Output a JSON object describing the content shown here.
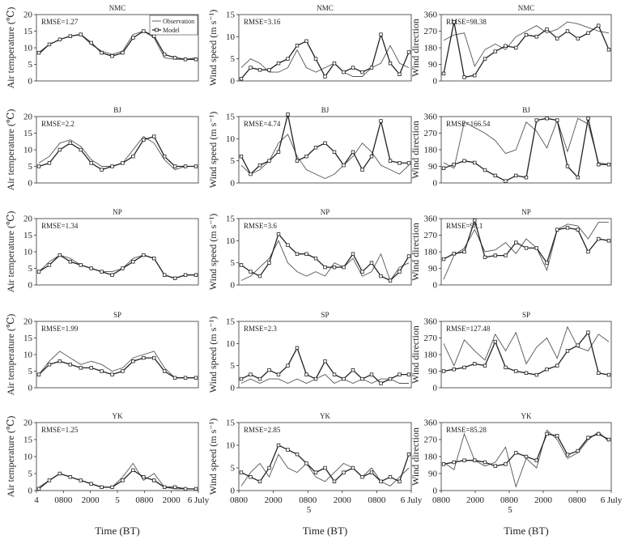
{
  "figure": {
    "xlabel": "Time (BT)",
    "legend": {
      "observation": "Observation",
      "model": "Model",
      "location": "top-right of first panel"
    }
  },
  "chart_data": [
    {
      "type": "line",
      "row": 0,
      "col": 0,
      "title": "NMC",
      "ylabel": "Air temperature (℃)",
      "ylim": [
        0,
        20
      ],
      "yticks": [
        0,
        5,
        10,
        15,
        20
      ],
      "rmse": "RMSE=1.27",
      "series": [
        {
          "name": "Observation",
          "values": [
            8,
            11,
            12.5,
            13.5,
            14,
            11,
            9,
            8,
            9,
            14,
            15,
            13,
            7,
            6.5,
            6.5,
            7
          ]
        },
        {
          "name": "Model",
          "values": [
            8.5,
            11,
            12.5,
            13.5,
            14,
            11.5,
            8.5,
            7.5,
            8.5,
            13,
            15,
            13.5,
            8,
            7,
            6.5,
            6.5
          ]
        }
      ]
    },
    {
      "type": "line",
      "row": 0,
      "col": 1,
      "title": "NMC",
      "ylabel": "Wind speed (m s⁻¹)",
      "ylim": [
        0,
        15
      ],
      "yticks": [
        0,
        5,
        10,
        15
      ],
      "rmse": "RMSE=3.16",
      "series": [
        {
          "name": "Observation",
          "values": [
            3,
            5,
            4,
            2,
            2,
            3,
            7,
            3,
            2,
            3,
            4,
            2,
            1,
            1,
            3,
            4,
            8,
            4,
            3
          ]
        },
        {
          "name": "Model",
          "values": [
            0.5,
            3,
            2.5,
            2.5,
            4,
            5,
            8,
            9,
            5,
            1,
            4,
            2,
            3,
            2,
            3,
            10.5,
            4,
            1.5,
            6.5
          ]
        }
      ]
    },
    {
      "type": "line",
      "row": 0,
      "col": 2,
      "title": "NMC",
      "ylabel": "Wind direction",
      "ylim": [
        0,
        360
      ],
      "yticks": [
        0,
        90,
        180,
        270,
        360
      ],
      "rmse": "RMSE=98.38",
      "series": [
        {
          "name": "Observation",
          "values": [
            220,
            250,
            260,
            80,
            170,
            200,
            170,
            240,
            270,
            300,
            260,
            280,
            320,
            310,
            290,
            270,
            260
          ]
        },
        {
          "name": "Model",
          "values": [
            40,
            320,
            20,
            30,
            120,
            160,
            190,
            180,
            250,
            240,
            280,
            230,
            270,
            230,
            260,
            300,
            170
          ]
        }
      ]
    },
    {
      "type": "line",
      "row": 1,
      "col": 0,
      "title": "BJ",
      "ylabel": "Air temperature (℃)",
      "ylim": [
        0,
        20
      ],
      "yticks": [
        0,
        5,
        10,
        15,
        20
      ],
      "rmse": "RMSE=2.2",
      "series": [
        {
          "name": "Observation",
          "values": [
            6,
            8,
            12,
            13,
            11,
            7,
            5,
            5,
            6,
            10,
            14,
            12,
            7,
            4,
            5,
            5
          ]
        },
        {
          "name": "Model",
          "values": [
            5,
            6,
            10,
            12,
            10,
            6,
            4,
            5,
            6,
            8,
            13,
            14,
            8,
            5,
            5,
            5
          ]
        }
      ]
    },
    {
      "type": "line",
      "row": 1,
      "col": 1,
      "title": "BJ",
      "ylabel": "Wind speed (m s⁻¹)",
      "ylim": [
        0,
        15
      ],
      "yticks": [
        0,
        5,
        10,
        15
      ],
      "rmse": "RMSE=4.74",
      "series": [
        {
          "name": "Observation",
          "values": [
            4,
            2,
            3,
            5,
            9,
            11,
            6,
            3,
            2,
            1,
            2,
            4,
            6,
            9,
            7,
            4,
            3,
            2,
            4
          ]
        },
        {
          "name": "Model",
          "values": [
            6,
            2,
            4,
            5,
            7,
            15.5,
            5,
            6,
            8,
            9,
            7,
            4,
            7,
            3,
            6,
            14,
            5,
            4.5,
            4.5
          ]
        }
      ]
    },
    {
      "type": "line",
      "row": 1,
      "col": 2,
      "title": "BJ",
      "ylabel": "Wind direction",
      "ylim": [
        0,
        360
      ],
      "yticks": [
        0,
        90,
        180,
        270,
        360
      ],
      "rmse": "RMSE=166.54",
      "series": [
        {
          "name": "Observation",
          "values": [
            110,
            80,
            330,
            300,
            270,
            230,
            160,
            180,
            330,
            280,
            190,
            340,
            170,
            350,
            320,
            110,
            100
          ]
        },
        {
          "name": "Model",
          "values": [
            80,
            100,
            120,
            110,
            70,
            40,
            10,
            40,
            30,
            340,
            350,
            340,
            90,
            30,
            350,
            100,
            100
          ]
        }
      ]
    },
    {
      "type": "line",
      "row": 2,
      "col": 0,
      "title": "NP",
      "ylabel": "Air temperature (℃)",
      "ylim": [
        0,
        20
      ],
      "yticks": [
        0,
        5,
        10,
        15,
        20
      ],
      "rmse": "RMSE=1.34",
      "series": [
        {
          "name": "Observation",
          "values": [
            4,
            7,
            9,
            8,
            6,
            5,
            4,
            4,
            5,
            8,
            9,
            8,
            3,
            2,
            3,
            3
          ]
        },
        {
          "name": "Model",
          "values": [
            4,
            6,
            9,
            7,
            6,
            5,
            4,
            3,
            5,
            7,
            9,
            8,
            3,
            2,
            3,
            3
          ]
        }
      ]
    },
    {
      "type": "line",
      "row": 2,
      "col": 1,
      "title": "NP",
      "ylabel": "Wind speed (m s⁻¹)",
      "ylim": [
        0,
        15
      ],
      "yticks": [
        0,
        5,
        10,
        15
      ],
      "rmse": "RMSE=3.6",
      "series": [
        {
          "name": "Observation",
          "values": [
            1,
            2,
            4,
            6,
            10,
            5,
            3,
            2,
            3,
            2,
            5,
            4,
            6,
            2,
            3,
            7,
            1,
            4,
            5
          ]
        },
        {
          "name": "Model",
          "values": [
            4.5,
            3,
            2,
            5,
            11.5,
            9,
            7,
            7,
            6,
            4,
            4,
            4,
            7,
            3,
            5,
            2,
            1,
            3,
            6.5
          ]
        }
      ]
    },
    {
      "type": "line",
      "row": 2,
      "col": 2,
      "title": "NP",
      "ylabel": "Wind direction",
      "ylim": [
        0,
        360
      ],
      "yticks": [
        0,
        90,
        180,
        270,
        360
      ],
      "rmse": "RMSE=98.1",
      "series": [
        {
          "name": "Observation",
          "values": [
            30,
            160,
            200,
            300,
            180,
            190,
            230,
            170,
            250,
            200,
            80,
            300,
            330,
            320,
            250,
            340,
            340
          ]
        },
        {
          "name": "Model",
          "values": [
            140,
            170,
            180,
            350,
            150,
            160,
            160,
            230,
            200,
            200,
            120,
            300,
            310,
            300,
            180,
            250,
            240
          ]
        }
      ]
    },
    {
      "type": "line",
      "row": 3,
      "col": 0,
      "title": "SP",
      "ylabel": "Air temperature (℃)",
      "ylim": [
        0,
        20
      ],
      "yticks": [
        0,
        5,
        10,
        15,
        20
      ],
      "rmse": "RMSE=1.99",
      "series": [
        {
          "name": "Observation",
          "values": [
            4,
            8,
            11,
            9,
            7,
            8,
            7,
            5,
            6,
            9,
            10,
            11,
            6,
            3,
            3,
            3
          ]
        },
        {
          "name": "Model",
          "values": [
            4,
            7,
            8,
            7,
            6,
            6,
            5,
            4,
            5,
            8,
            9,
            9,
            5,
            3,
            3,
            3
          ]
        }
      ]
    },
    {
      "type": "line",
      "row": 3,
      "col": 1,
      "title": "SP",
      "ylabel": "Wind speed (m s⁻¹)",
      "ylim": [
        0,
        15
      ],
      "yticks": [
        0,
        5,
        10,
        15
      ],
      "rmse": "RMSE=2.3",
      "series": [
        {
          "name": "Observation",
          "values": [
            1,
            2,
            1,
            2,
            2,
            1,
            2,
            1,
            2,
            3,
            1,
            2,
            1,
            2,
            1,
            2,
            2,
            1,
            1
          ]
        },
        {
          "name": "Model",
          "values": [
            2,
            3,
            2,
            4,
            3,
            5,
            9,
            3,
            2,
            6,
            3,
            2,
            4,
            2,
            3,
            1,
            2,
            3,
            3
          ]
        }
      ]
    },
    {
      "type": "line",
      "row": 3,
      "col": 2,
      "title": "SP",
      "ylabel": "Wind direction",
      "ylim": [
        0,
        360
      ],
      "yticks": [
        0,
        90,
        180,
        270,
        360
      ],
      "rmse": "RMSE=127.48",
      "series": [
        {
          "name": "Observation",
          "values": [
            240,
            120,
            260,
            200,
            150,
            290,
            200,
            300,
            130,
            220,
            270,
            160,
            330,
            220,
            200,
            290,
            250
          ]
        },
        {
          "name": "Model",
          "values": [
            90,
            100,
            110,
            130,
            120,
            250,
            110,
            90,
            80,
            70,
            100,
            120,
            200,
            230,
            300,
            80,
            70
          ]
        }
      ]
    },
    {
      "type": "line",
      "row": 4,
      "col": 0,
      "title": "YK",
      "ylabel": "Air temperature (℃)",
      "ylim": [
        0,
        20
      ],
      "yticks": [
        0,
        5,
        10,
        15,
        20
      ],
      "rmse": "RMSE=1.25",
      "series": [
        {
          "name": "Observation",
          "values": [
            1,
            3,
            5,
            4,
            3,
            2,
            1,
            1,
            4,
            8,
            3,
            5,
            1,
            0.5,
            0.5,
            0.5
          ]
        },
        {
          "name": "Model",
          "values": [
            0.5,
            3,
            5,
            4,
            3,
            2,
            1,
            1,
            3,
            6,
            4,
            3,
            1,
            1,
            0.5,
            0.5
          ]
        }
      ]
    },
    {
      "type": "line",
      "row": 4,
      "col": 1,
      "title": "YK",
      "ylabel": "Wind speed (m s⁻¹)",
      "ylim": [
        0,
        15
      ],
      "yticks": [
        0,
        5,
        10,
        15
      ],
      "rmse": "RMSE=2.85",
      "series": [
        {
          "name": "Observation",
          "values": [
            1,
            4,
            6,
            3,
            8,
            5,
            4,
            6,
            3,
            2,
            4,
            6,
            5,
            3,
            5,
            2,
            1,
            3,
            5
          ]
        },
        {
          "name": "Model",
          "values": [
            4,
            3,
            2,
            5,
            10,
            9,
            8,
            6,
            4,
            5,
            2,
            4,
            5,
            3,
            4,
            2,
            3,
            2,
            8
          ]
        }
      ]
    },
    {
      "type": "line",
      "row": 4,
      "col": 2,
      "title": "YK",
      "ylabel": "Wind direction",
      "ylim": [
        0,
        360
      ],
      "yticks": [
        0,
        90,
        180,
        270,
        360
      ],
      "rmse": "RMSE=85.28",
      "series": [
        {
          "name": "Observation",
          "values": [
            150,
            110,
            300,
            160,
            130,
            150,
            230,
            20,
            170,
            120,
            320,
            270,
            170,
            200,
            270,
            310,
            260
          ]
        },
        {
          "name": "Model",
          "values": [
            140,
            150,
            160,
            160,
            150,
            130,
            140,
            200,
            180,
            160,
            300,
            290,
            190,
            210,
            280,
            300,
            270
          ]
        }
      ]
    }
  ],
  "x_tick_rows": [
    {
      "col": 0,
      "labels": [
        "4",
        "0800",
        "2000",
        "5",
        "0800",
        "2000",
        "6 July"
      ]
    },
    {
      "col": 1,
      "labels": [
        "0800",
        "2000",
        "0800",
        "2000",
        "0800",
        "6 July"
      ]
    },
    {
      "col": 2,
      "labels": [
        "0800",
        "2000",
        "0800",
        "2000",
        "0800",
        "6 July"
      ]
    }
  ],
  "x_tick_sublabels": [
    {
      "col": 1,
      "label": "5"
    },
    {
      "col": 2,
      "label": "5"
    }
  ],
  "colors": {
    "observation": "#555555",
    "model": "#222222",
    "frame": "#333333"
  }
}
